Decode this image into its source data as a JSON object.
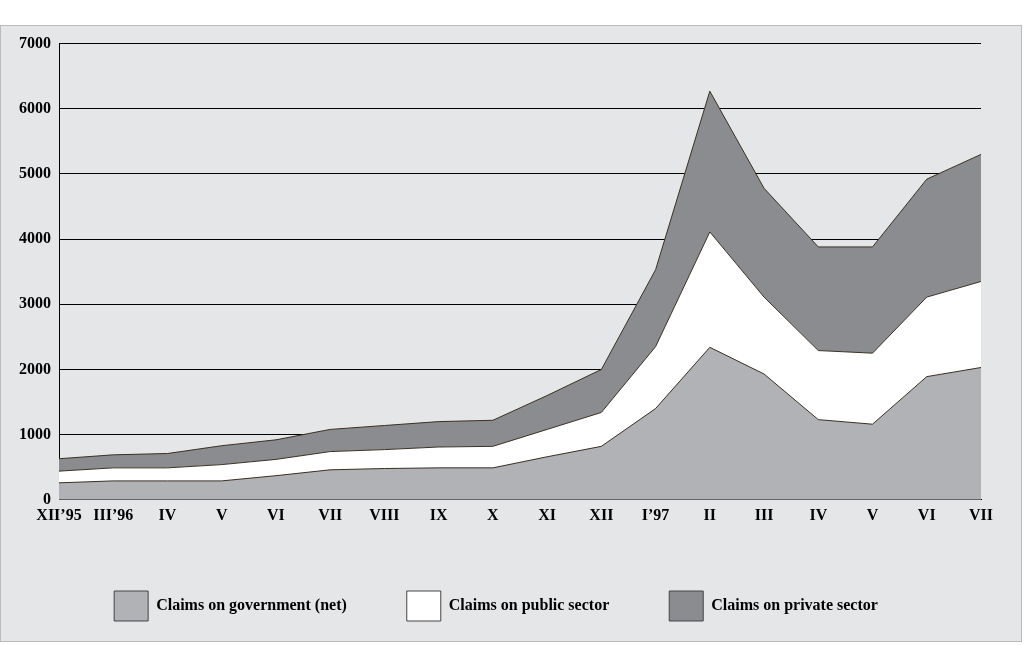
{
  "chart_data": {
    "type": "area",
    "stacked": true,
    "categories": [
      "XII’95",
      "III’96",
      "IV",
      "V",
      "VI",
      "VII",
      "VIII",
      "IX",
      "X",
      "XI",
      "XII",
      "I’97",
      "II",
      "III",
      "IV",
      "V",
      "VI",
      "VII"
    ],
    "series": [
      {
        "name": "Claims on government (net)",
        "color": "#b1b2b6",
        "values": [
          260,
          290,
          290,
          290,
          370,
          460,
          480,
          490,
          490,
          660,
          820,
          1400,
          2340,
          1930,
          1230,
          1160,
          1890,
          2030
        ]
      },
      {
        "name": "Claims on public sector",
        "color": "#ffffff",
        "values": [
          180,
          200,
          200,
          250,
          250,
          280,
          290,
          320,
          330,
          420,
          520,
          950,
          1770,
          1180,
          1060,
          1090,
          1220,
          1320
        ]
      },
      {
        "name": "Claims on private sector",
        "color": "#8b8c90",
        "values": [
          190,
          200,
          220,
          290,
          300,
          340,
          370,
          390,
          400,
          520,
          660,
          1180,
          2160,
          1670,
          1590,
          1630,
          1810,
          1950
        ]
      }
    ],
    "ylim": [
      0,
      7000
    ],
    "yticks": [
      0,
      1000,
      2000,
      3000,
      4000,
      5000,
      6000,
      7000
    ],
    "grid": "y",
    "legend": "bottom"
  }
}
